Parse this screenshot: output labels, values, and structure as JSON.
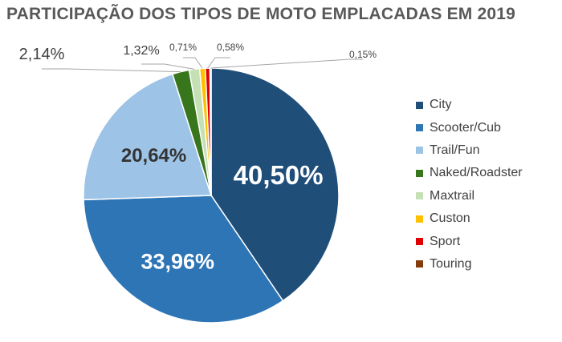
{
  "chart_data": {
    "type": "pie",
    "title": "PARTICIPAÇÃO DOS TIPOS DE MOTO EMPLACADAS EM 2019",
    "categories": [
      "City",
      "Scooter/Cub",
      "Trail/Fun",
      "Naked/Roadster",
      "Maxtrail",
      "Custon",
      "Sport",
      "Touring"
    ],
    "values": [
      40.5,
      33.96,
      20.64,
      2.14,
      1.32,
      0.71,
      0.58,
      0.15
    ],
    "labels": [
      "40,50%",
      "33,96%",
      "20,64%",
      "2,14%",
      "1,32%",
      "0,71%",
      "0,58%",
      "0,15%"
    ],
    "colors": [
      "#1f4e79",
      "#2e75b6",
      "#9dc3e6",
      "#38761d",
      "#c5e0b4",
      "#ffc000",
      "#e00000",
      "#843c0c"
    ],
    "legend_position": "right",
    "start_angle": "12 o'clock, clockwise"
  }
}
